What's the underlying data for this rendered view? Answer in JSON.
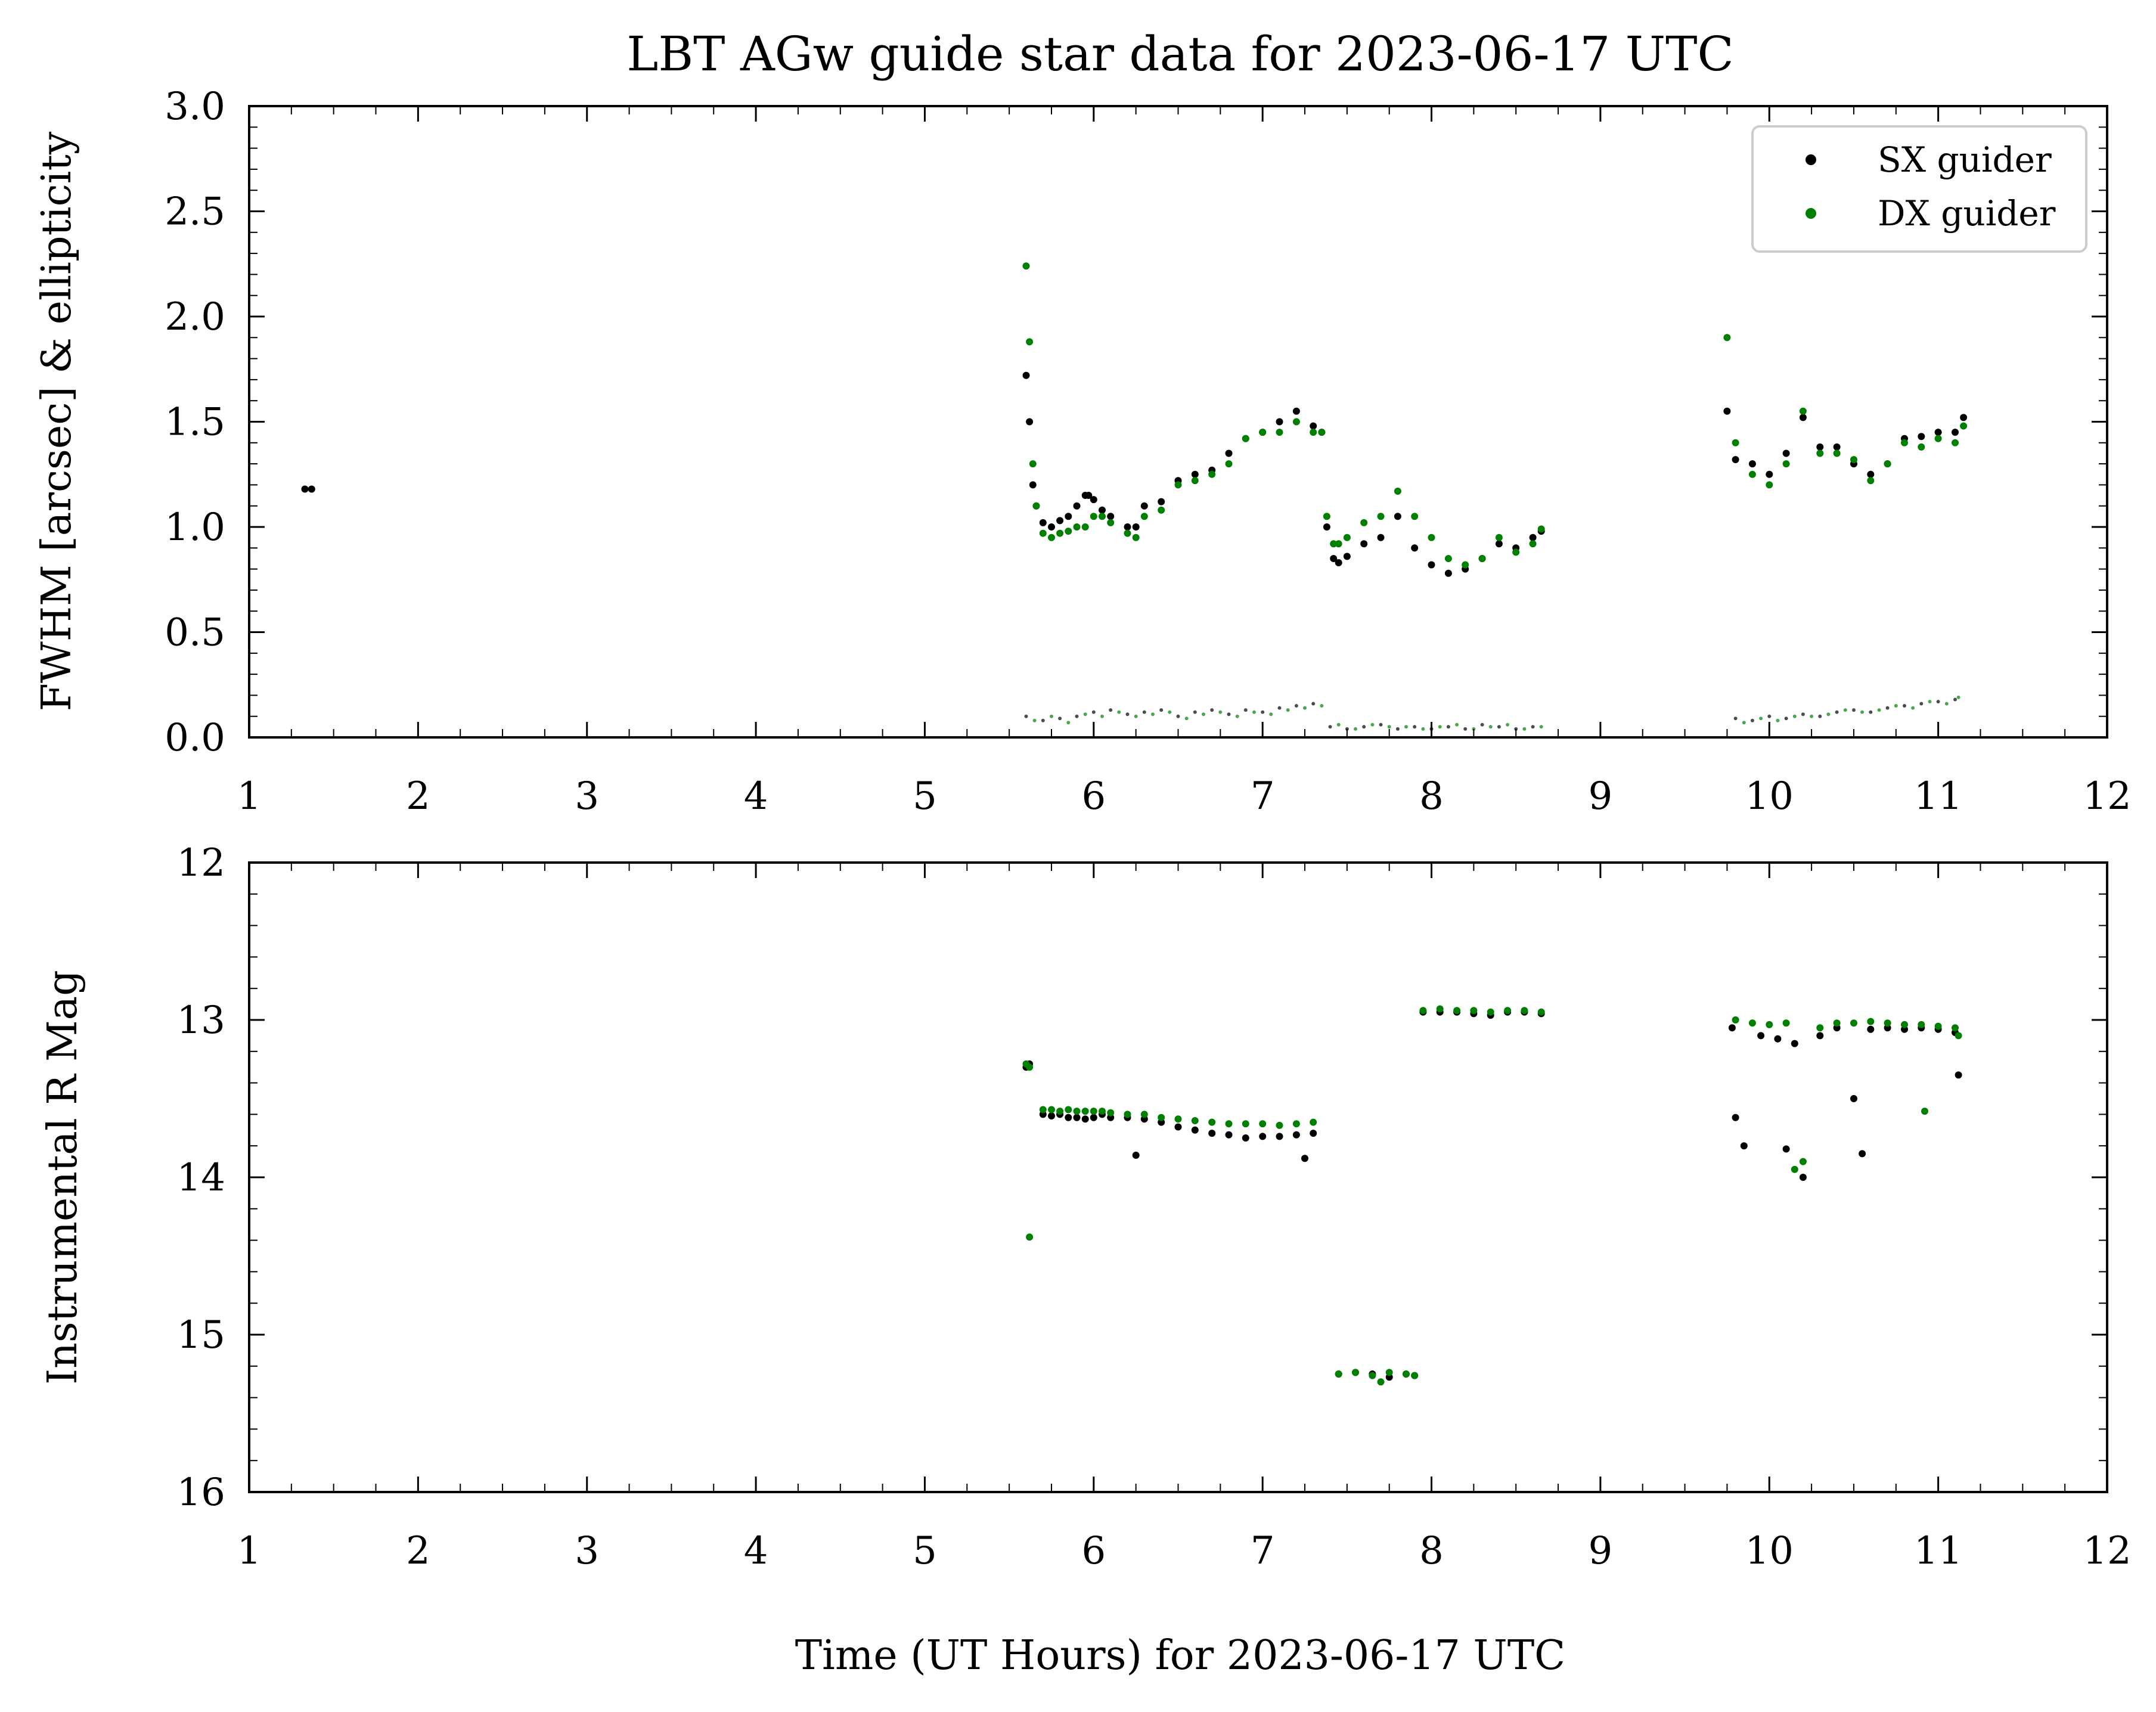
{
  "title": "LBT AGw guide star data for 2023-06-17 UTC",
  "xlabel": "Time (UT Hours) for 2023-06-17 UTC",
  "legend": {
    "placement": "top-right",
    "entries": [
      {
        "label": "SX guider",
        "color": "#000000"
      },
      {
        "label": "DX guider",
        "color": "#008000"
      }
    ]
  },
  "chart_data": [
    {
      "type": "scatter",
      "ylabel": "FWHM [arcsec] & ellipticity",
      "xlim": [
        1,
        12
      ],
      "ylim": [
        0.0,
        3.0
      ],
      "xticks": [
        "1",
        "2",
        "3",
        "4",
        "5",
        "6",
        "7",
        "8",
        "9",
        "10",
        "11",
        "12"
      ],
      "yticks": [
        "0.0",
        "0.5",
        "1.0",
        "1.5",
        "2.0",
        "2.5",
        "3.0"
      ],
      "series": [
        {
          "name": "SX guider",
          "color": "#000000",
          "x": [
            1.33,
            1.37,
            5.6,
            5.62,
            5.64,
            5.66,
            5.7,
            5.75,
            5.8,
            5.85,
            5.9,
            5.95,
            5.97,
            6.0,
            6.05,
            6.1,
            6.2,
            6.25,
            6.3,
            6.4,
            6.5,
            6.6,
            6.7,
            6.8,
            6.9,
            7.0,
            7.1,
            7.2,
            7.3,
            7.35,
            7.38,
            7.42,
            7.45,
            7.5,
            7.6,
            7.7,
            7.8,
            7.9,
            8.0,
            8.1,
            8.2,
            8.3,
            8.4,
            8.5,
            8.6,
            8.65,
            9.75,
            9.8,
            9.9,
            10.0,
            10.1,
            10.2,
            10.3,
            10.4,
            10.5,
            10.6,
            10.7,
            10.8,
            10.9,
            11.0,
            11.1,
            11.15
          ],
          "y": [
            1.18,
            1.18,
            1.72,
            1.5,
            1.2,
            1.1,
            1.02,
            1.0,
            1.03,
            1.05,
            1.1,
            1.15,
            1.15,
            1.13,
            1.08,
            1.05,
            1.0,
            1.0,
            1.1,
            1.12,
            1.22,
            1.25,
            1.27,
            1.35,
            1.42,
            1.45,
            1.5,
            1.55,
            1.48,
            1.45,
            1.0,
            0.85,
            0.83,
            0.86,
            0.92,
            0.95,
            1.05,
            0.9,
            0.82,
            0.78,
            0.8,
            0.85,
            0.92,
            0.9,
            0.95,
            0.98,
            1.55,
            1.32,
            1.3,
            1.25,
            1.35,
            1.52,
            1.38,
            1.38,
            1.3,
            1.25,
            1.3,
            1.42,
            1.43,
            1.45,
            1.45,
            1.52
          ]
        },
        {
          "name": "DX guider",
          "color": "#008000",
          "x": [
            5.6,
            5.62,
            5.64,
            5.66,
            5.7,
            5.75,
            5.8,
            5.85,
            5.9,
            5.95,
            6.0,
            6.05,
            6.1,
            6.2,
            6.25,
            6.3,
            6.4,
            6.5,
            6.6,
            6.7,
            6.8,
            6.9,
            7.0,
            7.1,
            7.2,
            7.3,
            7.35,
            7.38,
            7.42,
            7.45,
            7.5,
            7.6,
            7.7,
            7.8,
            7.9,
            8.0,
            8.1,
            8.2,
            8.3,
            8.4,
            8.5,
            8.6,
            8.65,
            9.75,
            9.8,
            9.9,
            10.0,
            10.1,
            10.2,
            10.3,
            10.4,
            10.5,
            10.6,
            10.7,
            10.8,
            10.9,
            11.0,
            11.1,
            11.15
          ],
          "y": [
            2.24,
            1.88,
            1.3,
            1.1,
            0.97,
            0.95,
            0.97,
            0.98,
            1.0,
            1.0,
            1.05,
            1.05,
            1.02,
            0.97,
            0.95,
            1.05,
            1.08,
            1.2,
            1.22,
            1.25,
            1.3,
            1.42,
            1.45,
            1.45,
            1.5,
            1.45,
            1.45,
            1.05,
            0.92,
            0.92,
            0.95,
            1.02,
            1.05,
            1.17,
            1.05,
            0.95,
            0.85,
            0.82,
            0.85,
            0.95,
            0.88,
            0.92,
            0.99,
            1.9,
            1.4,
            1.25,
            1.2,
            1.3,
            1.55,
            1.35,
            1.35,
            1.32,
            1.22,
            1.3,
            1.4,
            1.38,
            1.42,
            1.4,
            1.48
          ]
        },
        {
          "name": "SX ellipticity",
          "color": "#000000",
          "x": [
            5.6,
            5.7,
            5.8,
            5.9,
            6.0,
            6.1,
            6.2,
            6.3,
            6.4,
            6.5,
            6.6,
            6.7,
            6.8,
            6.9,
            7.0,
            7.1,
            7.2,
            7.3,
            7.4,
            7.5,
            7.6,
            7.7,
            7.8,
            7.9,
            8.0,
            8.1,
            8.2,
            8.3,
            8.4,
            8.5,
            8.6,
            9.8,
            9.9,
            10.0,
            10.1,
            10.2,
            10.3,
            10.4,
            10.5,
            10.6,
            10.7,
            10.8,
            10.9,
            11.0,
            11.1
          ],
          "y": [
            0.1,
            0.08,
            0.09,
            0.1,
            0.12,
            0.13,
            0.11,
            0.12,
            0.13,
            0.1,
            0.12,
            0.13,
            0.11,
            0.13,
            0.12,
            0.14,
            0.15,
            0.16,
            0.05,
            0.04,
            0.05,
            0.06,
            0.04,
            0.05,
            0.04,
            0.05,
            0.04,
            0.06,
            0.05,
            0.04,
            0.05,
            0.09,
            0.08,
            0.1,
            0.09,
            0.11,
            0.1,
            0.12,
            0.13,
            0.12,
            0.14,
            0.15,
            0.16,
            0.17,
            0.18
          ]
        },
        {
          "name": "DX ellipticity",
          "color": "#008000",
          "x": [
            5.65,
            5.75,
            5.85,
            5.95,
            6.05,
            6.15,
            6.25,
            6.35,
            6.45,
            6.55,
            6.65,
            6.75,
            6.85,
            6.95,
            7.05,
            7.15,
            7.25,
            7.35,
            7.45,
            7.55,
            7.65,
            7.75,
            7.85,
            7.95,
            8.05,
            8.15,
            8.25,
            8.35,
            8.45,
            8.55,
            8.65,
            9.85,
            9.95,
            10.05,
            10.15,
            10.25,
            10.35,
            10.45,
            10.55,
            10.65,
            10.75,
            10.85,
            10.95,
            11.05,
            11.12
          ],
          "y": [
            0.08,
            0.1,
            0.07,
            0.11,
            0.1,
            0.12,
            0.1,
            0.11,
            0.12,
            0.09,
            0.11,
            0.12,
            0.1,
            0.12,
            0.11,
            0.13,
            0.14,
            0.15,
            0.06,
            0.04,
            0.06,
            0.05,
            0.05,
            0.04,
            0.05,
            0.06,
            0.04,
            0.05,
            0.06,
            0.04,
            0.05,
            0.07,
            0.09,
            0.08,
            0.1,
            0.1,
            0.11,
            0.13,
            0.12,
            0.13,
            0.15,
            0.14,
            0.17,
            0.16,
            0.19
          ]
        }
      ]
    },
    {
      "type": "scatter",
      "ylabel": "Instrumental R Mag",
      "xlim": [
        1,
        12
      ],
      "ylim": [
        16,
        12
      ],
      "y_inverted": true,
      "xticks": [
        "1",
        "2",
        "3",
        "4",
        "5",
        "6",
        "7",
        "8",
        "9",
        "10",
        "11",
        "12"
      ],
      "yticks": [
        "12",
        "13",
        "14",
        "15",
        "16"
      ],
      "series": [
        {
          "name": "SX guider",
          "color": "#000000",
          "x": [
            5.6,
            5.62,
            5.7,
            5.75,
            5.8,
            5.85,
            5.9,
            5.95,
            6.0,
            6.05,
            6.1,
            6.2,
            6.25,
            6.3,
            6.4,
            6.5,
            6.6,
            6.7,
            6.8,
            6.9,
            7.0,
            7.1,
            7.2,
            7.25,
            7.3,
            7.45,
            7.55,
            7.65,
            7.75,
            7.85,
            7.9,
            7.95,
            8.05,
            8.15,
            8.25,
            8.35,
            8.45,
            8.55,
            8.65,
            9.78,
            9.8,
            9.85,
            9.95,
            10.05,
            10.1,
            10.15,
            10.2,
            10.3,
            10.4,
            10.5,
            10.55,
            10.6,
            10.7,
            10.8,
            10.9,
            11.0,
            11.1,
            11.12
          ],
          "y": [
            13.3,
            13.28,
            13.6,
            13.61,
            13.6,
            13.62,
            13.62,
            13.63,
            13.62,
            13.6,
            13.62,
            13.62,
            13.86,
            13.63,
            13.65,
            13.68,
            13.7,
            13.72,
            13.73,
            13.75,
            13.74,
            13.74,
            13.73,
            13.88,
            13.72,
            15.25,
            15.24,
            15.25,
            15.27,
            15.25,
            15.26,
            12.95,
            12.95,
            12.95,
            12.96,
            12.97,
            12.95,
            12.95,
            12.96,
            13.05,
            13.62,
            13.8,
            13.1,
            13.12,
            13.82,
            13.15,
            14.0,
            13.1,
            13.05,
            13.5,
            13.85,
            13.06,
            13.05,
            13.06,
            13.05,
            13.06,
            13.08,
            13.35
          ],
          "point_radius": "small"
        },
        {
          "name": "DX guider",
          "color": "#008000",
          "x": [
            5.6,
            5.62,
            5.62,
            5.7,
            5.75,
            5.8,
            5.85,
            5.9,
            5.95,
            6.0,
            6.05,
            6.1,
            6.2,
            6.3,
            6.4,
            6.5,
            6.6,
            6.7,
            6.8,
            6.9,
            7.0,
            7.1,
            7.2,
            7.3,
            7.45,
            7.55,
            7.65,
            7.7,
            7.75,
            7.85,
            7.9,
            7.95,
            8.05,
            8.15,
            8.25,
            8.35,
            8.45,
            8.55,
            8.65,
            9.8,
            9.9,
            10.0,
            10.1,
            10.15,
            10.2,
            10.3,
            10.4,
            10.5,
            10.6,
            10.7,
            10.8,
            10.9,
            10.92,
            11.0,
            11.1,
            11.12
          ],
          "y": [
            13.28,
            13.3,
            14.38,
            13.57,
            13.57,
            13.58,
            13.57,
            13.58,
            13.58,
            13.58,
            13.58,
            13.59,
            13.6,
            13.6,
            13.62,
            13.63,
            13.64,
            13.65,
            13.66,
            13.66,
            13.66,
            13.67,
            13.66,
            13.65,
            15.25,
            15.24,
            15.26,
            15.3,
            15.24,
            15.25,
            15.26,
            12.94,
            12.93,
            12.94,
            12.94,
            12.95,
            12.94,
            12.94,
            12.95,
            13.0,
            13.02,
            13.03,
            13.02,
            13.95,
            13.9,
            13.05,
            13.02,
            13.02,
            13.01,
            13.02,
            13.03,
            13.03,
            13.58,
            13.04,
            13.05,
            13.1
          ],
          "point_radius": "small"
        }
      ]
    }
  ]
}
